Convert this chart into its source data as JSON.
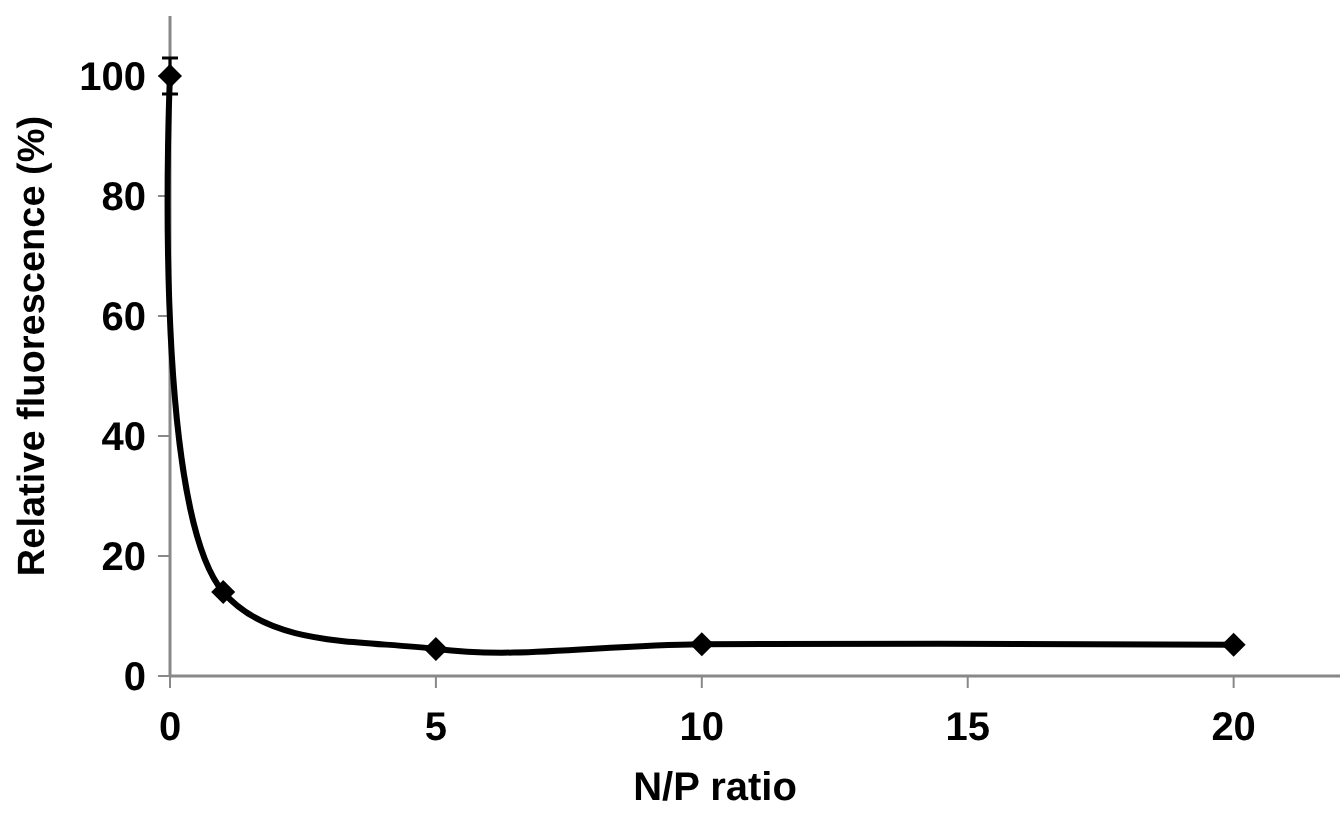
{
  "chart_data": {
    "type": "line",
    "xlabel": "N/P ratio",
    "ylabel": "Relative fluorescence (%)",
    "x": [
      0,
      1,
      5,
      10,
      20
    ],
    "series": [
      {
        "color": "#000000",
        "values": [
          100,
          14,
          4.5,
          5.3,
          5.2
        ],
        "errors": [
          3,
          null,
          null,
          null,
          null
        ]
      }
    ],
    "xlim": [
      0,
      22
    ],
    "xticks": [
      0,
      5,
      10,
      15,
      20
    ],
    "ylim": [
      0,
      110
    ],
    "yticks": [
      0,
      20,
      40,
      60,
      80,
      100
    ],
    "marker": "diamond",
    "line_style": "solid",
    "grid": false
  }
}
